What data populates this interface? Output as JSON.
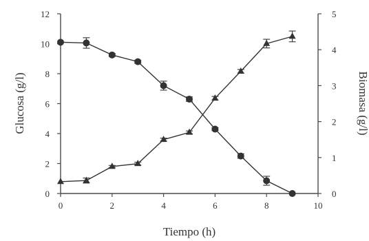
{
  "chart_data": {
    "type": "line",
    "xlabel": "Tiempo (h)",
    "ylabel_left": "Glucosa (g/l)",
    "ylabel_right": "Biomasa (g/l)",
    "xlim": [
      0,
      10
    ],
    "ylim_left": [
      0,
      12
    ],
    "ylim_right": [
      0,
      5
    ],
    "x_ticks": [
      0,
      2,
      4,
      6,
      8,
      10
    ],
    "y_left_ticks": [
      0,
      2,
      4,
      6,
      8,
      10,
      12
    ],
    "y_right_ticks": [
      0,
      1,
      2,
      3,
      4,
      5
    ],
    "grid": false,
    "legend": "none",
    "series": [
      {
        "axis": "left",
        "marker": "circle",
        "color": "#333333",
        "x": [
          0,
          1,
          2,
          3,
          4,
          5,
          6,
          7,
          8,
          9
        ],
        "y": [
          10.1,
          10.05,
          9.25,
          8.8,
          7.2,
          6.3,
          4.3,
          2.5,
          0.85,
          0.0
        ],
        "err": [
          0,
          0.35,
          0.1,
          0.1,
          0.3,
          0.15,
          0.1,
          0.15,
          0.3,
          0
        ]
      },
      {
        "axis": "right",
        "marker": "triangle",
        "color": "#333333",
        "x": [
          0,
          1,
          2,
          3,
          4,
          5,
          6,
          7,
          8,
          9
        ],
        "y": [
          0.33,
          0.36,
          0.75,
          0.83,
          1.5,
          1.7,
          2.65,
          3.4,
          4.17,
          4.37
        ],
        "err": [
          0,
          0.07,
          0.03,
          0.04,
          0.04,
          0.04,
          0.05,
          0.05,
          0.12,
          0.15
        ]
      }
    ]
  }
}
